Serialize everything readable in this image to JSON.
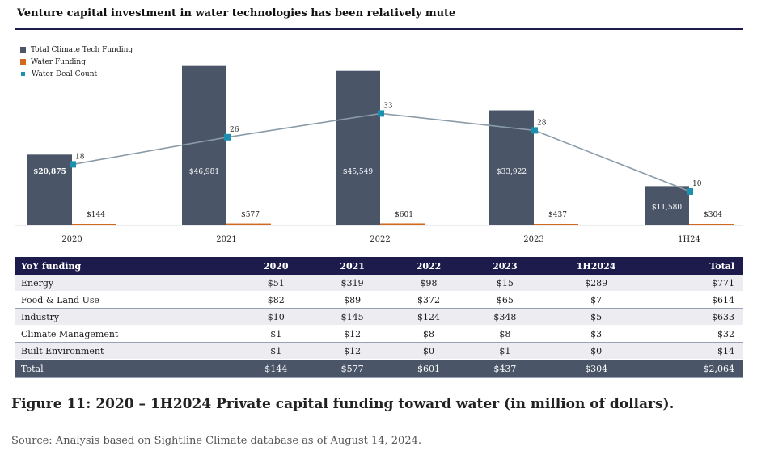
{
  "title": "Venture capital investment in water technologies has been relatively mute",
  "colors": {
    "total_climate": "#4a5568",
    "water_funding": "#d2691e",
    "deal_line": "#8a9ba8",
    "deal_marker": "#1f8fb0",
    "navy": "#1d1b4b"
  },
  "chart_data": {
    "type": "bar",
    "categories": [
      "2020",
      "2021",
      "2022",
      "2023",
      "1H24"
    ],
    "series": [
      {
        "name": "Total Climate Tech Funding",
        "type": "bar",
        "values": [
          20875,
          46981,
          45549,
          33922,
          11580
        ],
        "labels": [
          "$20,875",
          "$46,981",
          "$45,549",
          "$33,922",
          "$11,580"
        ]
      },
      {
        "name": "Water Funding",
        "type": "bar",
        "values": [
          144,
          577,
          601,
          437,
          304
        ],
        "labels": [
          "$144",
          "$577",
          "$601",
          "$437",
          "$304"
        ]
      },
      {
        "name": "Water Deal Count",
        "type": "line",
        "axis": "secondary",
        "values": [
          18,
          26,
          33,
          28,
          10
        ],
        "labels": [
          "18",
          "26",
          "33",
          "28",
          "10"
        ]
      }
    ],
    "ylim": [
      0,
      50000
    ],
    "y2lim": [
      0,
      50
    ],
    "legend": "top-left"
  },
  "table": {
    "headers": [
      "YoY funding",
      "2020",
      "2021",
      "2022",
      "2023",
      "1H2024",
      "Total"
    ],
    "rows": [
      {
        "label": "Energy",
        "cells": [
          "$51",
          "$319",
          "$98",
          "$15",
          "$289",
          "$771"
        ]
      },
      {
        "label": "Food & Land Use",
        "cells": [
          "$82",
          "$89",
          "$372",
          "$65",
          "$7",
          "$614"
        ]
      },
      {
        "label": "Industry",
        "cells": [
          "$10",
          "$145",
          "$124",
          "$348",
          "$5",
          "$633"
        ]
      },
      {
        "label": "Climate Management",
        "cells": [
          "$1",
          "$12",
          "$8",
          "$8",
          "$3",
          "$32"
        ]
      },
      {
        "label": "Built Environment",
        "cells": [
          "$1",
          "$12",
          "$0",
          "$1",
          "$0",
          "$14"
        ]
      }
    ],
    "total": {
      "label": "Total",
      "cells": [
        "$144",
        "$577",
        "$601",
        "$437",
        "$304",
        "$2,064"
      ]
    }
  },
  "figure_caption": "Figure 11: 2020 – 1H2024 Private capital funding toward water (in million of dollars).",
  "source": "Source: Analysis based on Sightline Climate database as of August 14, 2024."
}
